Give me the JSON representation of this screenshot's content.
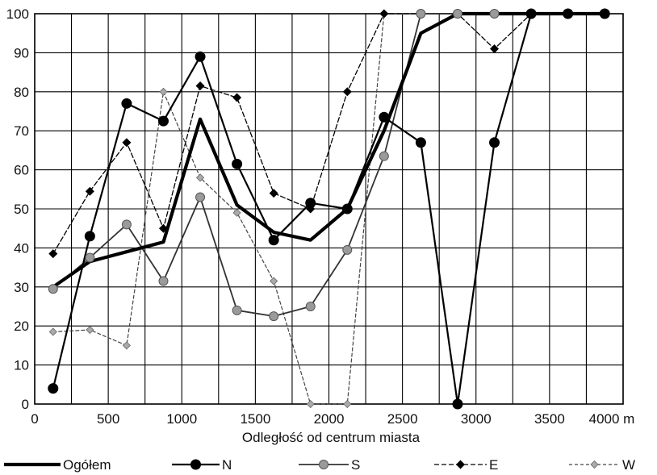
{
  "chart_data": {
    "type": "line",
    "title": "",
    "xlabel": "Odległość od centrum miasta",
    "ylabel": "",
    "xlim": [
      0,
      4000
    ],
    "ylim": [
      0,
      100
    ],
    "x_ticks": [
      0,
      500,
      1000,
      1500,
      2000,
      2500,
      3000,
      3500,
      4000
    ],
    "x_tick_labels": [
      "0",
      "500",
      "1000",
      "1500",
      "2000",
      "2500",
      "3000",
      "3500",
      "4000 m"
    ],
    "y_ticks": [
      0,
      10,
      20,
      30,
      40,
      50,
      60,
      70,
      80,
      90,
      100
    ],
    "y_tick_labels": [
      "0",
      "10",
      "20",
      "30",
      "40",
      "50",
      "60",
      "70",
      "80",
      "90",
      "100"
    ],
    "grid": true,
    "legend_position": "bottom",
    "series": [
      {
        "name": "Ogółem",
        "style": "thick",
        "color": "#000000",
        "marker": "none",
        "x": [
          125,
          375,
          625,
          875,
          1125,
          1375,
          1625,
          1875,
          2125,
          2375,
          2625,
          2875,
          3125,
          3375,
          3625,
          3875
        ],
        "y": [
          30,
          36.5,
          39,
          41.5,
          73,
          51,
          44,
          42,
          50,
          70,
          95,
          100,
          100,
          100,
          100,
          100
        ]
      },
      {
        "name": "N",
        "style": "medium",
        "color": "#000000",
        "marker": "circle",
        "x": [
          125,
          375,
          625,
          875,
          1125,
          1375,
          1625,
          1875,
          2125,
          2375,
          2625,
          2875,
          3125,
          3375,
          3625,
          3875
        ],
        "y": [
          4,
          43,
          77,
          72.5,
          89,
          61.5,
          42,
          51.5,
          50,
          73.5,
          67,
          0,
          67,
          100,
          100,
          100
        ]
      },
      {
        "name": "S",
        "style": "medium-gray",
        "color": "#333333",
        "marker": "circle-gray",
        "x": [
          125,
          375,
          625,
          875,
          1125,
          1375,
          1625,
          1875,
          2125,
          2375,
          2625,
          2875,
          3125,
          3375,
          3625,
          3875
        ],
        "y": [
          29.5,
          37.5,
          46,
          31.5,
          53,
          24,
          22.5,
          25,
          39.5,
          63.5,
          100,
          100,
          100,
          100,
          100,
          100
        ]
      },
      {
        "name": "E",
        "style": "dashed",
        "color": "#000000",
        "marker": "diamond",
        "x": [
          125,
          375,
          625,
          875,
          1125,
          1375,
          1625,
          1875,
          2125,
          2375,
          2625,
          2875,
          3125,
          3375,
          3625,
          3875
        ],
        "y": [
          38.5,
          54.5,
          67,
          45,
          81.5,
          78.5,
          54,
          50,
          80,
          100,
          100,
          100,
          91,
          100,
          100,
          100
        ]
      },
      {
        "name": "W",
        "style": "dotted",
        "color": "#555555",
        "marker": "diamond-gray",
        "x": [
          125,
          375,
          625,
          875,
          1125,
          1375,
          1625,
          1875,
          2125,
          2375,
          2625,
          2875,
          3125,
          3375,
          3625,
          3875
        ],
        "y": [
          18.5,
          19,
          15,
          80,
          58,
          49,
          31.5,
          0,
          0,
          100,
          100,
          100,
          100,
          100,
          100,
          100
        ]
      }
    ]
  }
}
